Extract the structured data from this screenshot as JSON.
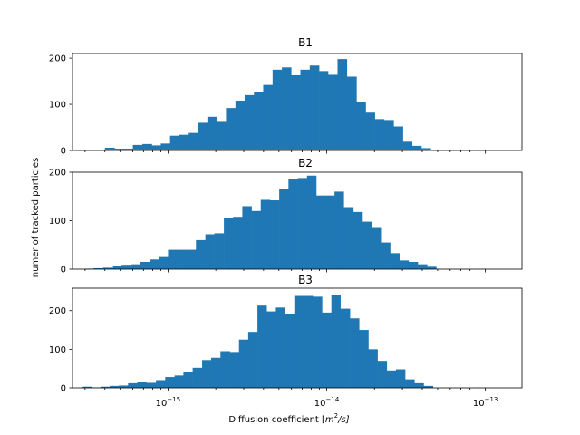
{
  "chart_data": {
    "type": "bar",
    "subtype": "histogram",
    "layout": "3 stacked panels, shared x axis",
    "x_scale": "log",
    "xlim": [
      2.5e-16,
      1.7e-13
    ],
    "xlabel": "Diffusion coefficient [m²/s]",
    "xlabel_parts": {
      "base": "Diffusion coefficient [",
      "m": "m",
      "exp": "2",
      "rest": "/s]"
    },
    "ylabel": "numer of tracked particles",
    "x_ticks": [
      {
        "value": 1e-15,
        "mantissa": "10",
        "exponent": "−15"
      },
      {
        "value": 1e-14,
        "mantissa": "10",
        "exponent": "−14"
      },
      {
        "value": 1e-13,
        "mantissa": "10",
        "exponent": "−13"
      }
    ],
    "bar_color": "#1f77b4",
    "grid": false,
    "legend": "none",
    "panels": [
      {
        "title": "B1",
        "ylim": [
          0,
          210
        ],
        "y_ticks": [
          "0",
          "100",
          "200"
        ],
        "y_tick_values": [
          0,
          100,
          200
        ],
        "bins": [
          [
            4e-16,
            4.6e-16,
            6
          ],
          [
            4.6e-16,
            5.2e-16,
            4
          ],
          [
            5.2e-16,
            6e-16,
            4
          ],
          [
            6e-16,
            6.9e-16,
            12
          ],
          [
            6.9e-16,
            7.9e-16,
            14
          ],
          [
            7.9e-16,
            9e-16,
            11
          ],
          [
            9e-16,
            1.03e-15,
            15
          ],
          [
            1.03e-15,
            1.18e-15,
            32
          ],
          [
            1.18e-15,
            1.35e-15,
            34
          ],
          [
            1.35e-15,
            1.55e-15,
            38
          ],
          [
            1.55e-15,
            1.77e-15,
            60
          ],
          [
            1.77e-15,
            2.03e-15,
            73
          ],
          [
            2.03e-15,
            2.32e-15,
            62
          ],
          [
            2.32e-15,
            2.66e-15,
            92
          ],
          [
            2.66e-15,
            3.04e-15,
            108
          ],
          [
            3.04e-15,
            3.48e-15,
            120
          ],
          [
            3.48e-15,
            3.98e-15,
            126
          ],
          [
            3.98e-15,
            4.56e-15,
            142
          ],
          [
            4.56e-15,
            5.22e-15,
            175
          ],
          [
            5.22e-15,
            5.97e-15,
            180
          ],
          [
            5.97e-15,
            6.83e-15,
            163
          ],
          [
            6.83e-15,
            7.82e-15,
            175
          ],
          [
            7.82e-15,
            8.95e-15,
            184
          ],
          [
            8.95e-15,
            1.02e-14,
            172
          ],
          [
            1.02e-14,
            1.17e-14,
            164
          ],
          [
            1.17e-14,
            1.34e-14,
            198
          ],
          [
            1.34e-14,
            1.54e-14,
            160
          ],
          [
            1.54e-14,
            1.76e-14,
            105
          ],
          [
            1.76e-14,
            2.01e-14,
            82
          ],
          [
            2.01e-14,
            2.3e-14,
            68
          ],
          [
            2.3e-14,
            2.64e-14,
            66
          ],
          [
            2.64e-14,
            3.02e-14,
            52
          ],
          [
            3.02e-14,
            3.45e-14,
            19
          ],
          [
            3.45e-14,
            3.95e-14,
            10
          ],
          [
            3.95e-14,
            4.52e-14,
            5
          ],
          [
            4.52e-14,
            5.17e-14,
            1
          ]
        ]
      },
      {
        "title": "B2",
        "ylim": [
          0,
          200
        ],
        "y_ticks": [
          "0",
          "100",
          "200"
        ],
        "y_tick_values": [
          0,
          100,
          200
        ],
        "bins": [
          [
            3e-16,
            3.4e-16,
            1
          ],
          [
            3.4e-16,
            3.9e-16,
            2
          ],
          [
            3.9e-16,
            4.5e-16,
            3
          ],
          [
            4.5e-16,
            5.1e-16,
            6
          ],
          [
            5.1e-16,
            5.9e-16,
            9
          ],
          [
            5.9e-16,
            6.7e-16,
            10
          ],
          [
            6.7e-16,
            7.7e-16,
            15
          ],
          [
            7.7e-16,
            8.8e-16,
            20
          ],
          [
            8.8e-16,
            1e-15,
            25
          ],
          [
            1e-15,
            1.15e-15,
            40
          ],
          [
            1.15e-15,
            1.31e-15,
            40
          ],
          [
            1.31e-15,
            1.5e-15,
            40
          ],
          [
            1.5e-15,
            1.72e-15,
            60
          ],
          [
            1.72e-15,
            1.96e-15,
            72
          ],
          [
            1.96e-15,
            2.25e-15,
            74
          ],
          [
            2.25e-15,
            2.57e-15,
            105
          ],
          [
            2.57e-15,
            2.94e-15,
            108
          ],
          [
            2.94e-15,
            3.36e-15,
            130
          ],
          [
            3.36e-15,
            3.84e-15,
            120
          ],
          [
            3.84e-15,
            4.39e-15,
            143
          ],
          [
            4.39e-15,
            5.02e-15,
            142
          ],
          [
            5.02e-15,
            5.74e-15,
            165
          ],
          [
            5.74e-15,
            6.57e-15,
            185
          ],
          [
            6.57e-15,
            7.51e-15,
            188
          ],
          [
            7.51e-15,
            8.59e-15,
            193
          ],
          [
            8.59e-15,
            9.82e-15,
            152
          ],
          [
            9.82e-15,
            1.12e-14,
            152
          ],
          [
            1.12e-14,
            1.28e-14,
            160
          ],
          [
            1.28e-14,
            1.47e-14,
            128
          ],
          [
            1.47e-14,
            1.68e-14,
            118
          ],
          [
            1.68e-14,
            1.92e-14,
            98
          ],
          [
            1.92e-14,
            2.19e-14,
            85
          ],
          [
            2.19e-14,
            2.51e-14,
            55
          ],
          [
            2.51e-14,
            2.87e-14,
            33
          ],
          [
            2.87e-14,
            3.28e-14,
            18
          ],
          [
            3.28e-14,
            3.75e-14,
            15
          ],
          [
            3.75e-14,
            4.29e-14,
            10
          ],
          [
            4.29e-14,
            4.9e-14,
            5
          ]
        ]
      },
      {
        "title": "B3",
        "ylim": [
          0,
          258
        ],
        "y_ticks": [
          "0",
          "100",
          "200"
        ],
        "y_tick_values": [
          0,
          100,
          200
        ],
        "bins": [
          [
            2.9e-16,
            3.3e-16,
            3
          ],
          [
            3.3e-16,
            3.8e-16,
            1
          ],
          [
            3.8e-16,
            4.3e-16,
            3
          ],
          [
            4.3e-16,
            4.9e-16,
            5
          ],
          [
            4.9e-16,
            5.6e-16,
            6
          ],
          [
            5.6e-16,
            6.4e-16,
            12
          ],
          [
            6.4e-16,
            7.3e-16,
            15
          ],
          [
            7.3e-16,
            8.4e-16,
            13
          ],
          [
            8.4e-16,
            9.6e-16,
            20
          ],
          [
            9.6e-16,
            1.1e-15,
            28
          ],
          [
            1.1e-15,
            1.25e-15,
            32
          ],
          [
            1.25e-15,
            1.43e-15,
            40
          ],
          [
            1.43e-15,
            1.64e-15,
            52
          ],
          [
            1.64e-15,
            1.87e-15,
            72
          ],
          [
            1.87e-15,
            2.14e-15,
            78
          ],
          [
            2.14e-15,
            2.45e-15,
            95
          ],
          [
            2.45e-15,
            2.8e-15,
            93
          ],
          [
            2.8e-15,
            3.2e-15,
            125
          ],
          [
            3.2e-15,
            3.66e-15,
            145
          ],
          [
            3.66e-15,
            4.18e-15,
            213
          ],
          [
            4.18e-15,
            4.78e-15,
            198
          ],
          [
            4.78e-15,
            5.47e-15,
            208
          ],
          [
            5.47e-15,
            6.25e-15,
            190
          ],
          [
            6.25e-15,
            7.15e-15,
            238
          ],
          [
            7.15e-15,
            8.17e-15,
            238
          ],
          [
            8.17e-15,
            9.34e-15,
            236
          ],
          [
            9.34e-15,
            1.07e-14,
            195
          ],
          [
            1.07e-14,
            1.22e-14,
            240
          ],
          [
            1.22e-14,
            1.4e-14,
            205
          ],
          [
            1.4e-14,
            1.6e-14,
            180
          ],
          [
            1.6e-14,
            1.83e-14,
            150
          ],
          [
            1.83e-14,
            2.09e-14,
            100
          ],
          [
            2.09e-14,
            2.39e-14,
            70
          ],
          [
            2.39e-14,
            2.73e-14,
            45
          ],
          [
            2.73e-14,
            3.12e-14,
            48
          ],
          [
            3.12e-14,
            3.57e-14,
            22
          ],
          [
            3.57e-14,
            4.08e-14,
            12
          ],
          [
            4.08e-14,
            4.67e-14,
            5
          ]
        ]
      }
    ]
  }
}
